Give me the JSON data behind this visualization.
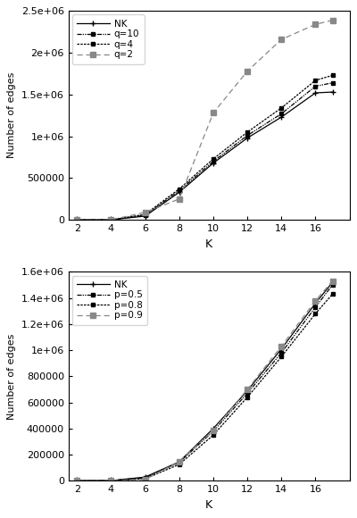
{
  "x": [
    2,
    4,
    6,
    8,
    10,
    12,
    14,
    16,
    17
  ],
  "top": {
    "NK": [
      0,
      1000,
      45000,
      330000,
      680000,
      980000,
      1230000,
      1520000,
      1530000
    ],
    "q10": [
      0,
      1000,
      55000,
      350000,
      700000,
      1010000,
      1270000,
      1600000,
      1640000
    ],
    "q4": [
      0,
      1000,
      65000,
      370000,
      730000,
      1050000,
      1340000,
      1670000,
      1730000
    ],
    "q2": [
      0,
      1000,
      90000,
      250000,
      1280000,
      1780000,
      2160000,
      2340000,
      2390000
    ],
    "labels": [
      "NK",
      "q=10",
      "q=4",
      "q=2"
    ],
    "ylabel": "Number of edges",
    "xlabel": "K",
    "ylim": [
      0,
      2500000
    ],
    "yticks": [
      0,
      500000,
      1000000,
      1500000,
      2000000,
      2500000
    ],
    "ytick_labels": [
      "0",
      "500000",
      "1e+06",
      "1.5e+06",
      "2e+06",
      "2.5e+06"
    ],
    "xticks": [
      2,
      4,
      6,
      8,
      10,
      12,
      14,
      16,
      18
    ]
  },
  "bottom": {
    "NK": [
      0,
      1000,
      28000,
      145000,
      400000,
      690000,
      1010000,
      1360000,
      1520000
    ],
    "p05": [
      0,
      1000,
      22000,
      140000,
      380000,
      670000,
      980000,
      1330000,
      1500000
    ],
    "p08": [
      0,
      1000,
      15000,
      125000,
      350000,
      640000,
      950000,
      1280000,
      1430000
    ],
    "p09": [
      0,
      1000,
      10000,
      148000,
      385000,
      700000,
      1030000,
      1380000,
      1530000
    ],
    "labels": [
      "NK",
      "p=0.5",
      "p=0.8",
      "p=0.9"
    ],
    "ylabel": "Number of edges",
    "xlabel": "K",
    "ylim": [
      0,
      1600000
    ],
    "yticks": [
      0,
      200000,
      400000,
      600000,
      800000,
      1000000,
      1200000,
      1400000,
      1600000
    ],
    "ytick_labels": [
      "0",
      "200000",
      "400000",
      "600000",
      "800000",
      "1e+06",
      "1.2e+06",
      "1.4e+06",
      "1.6e+06"
    ],
    "xticks": [
      2,
      4,
      6,
      8,
      10,
      12,
      14,
      16,
      18
    ]
  },
  "bg_color": "#ffffff",
  "plot_bg": "#ffffff"
}
